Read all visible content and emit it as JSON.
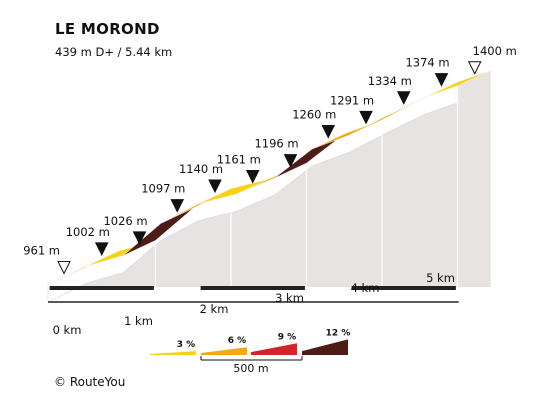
{
  "title": "LE MOROND",
  "subtitle": "439 m D+ / 5.44 km",
  "copyright": "© RouteYou",
  "colors": {
    "grade_3": "#f9d218",
    "grade_6": "#f2a912",
    "grade_9": "#d4242a",
    "grade_12": "#4e1b16",
    "wall": "#e7e3e3",
    "segment_front": "#ffffff"
  },
  "chart_data": {
    "type": "area",
    "distance_unit": "km",
    "elevation_unit": "m",
    "start": {
      "distance_km": 0,
      "elevation_m": 961,
      "label": "961 m"
    },
    "end": {
      "distance_km": 5.44,
      "elevation_m": 1400,
      "label": "1400 m"
    },
    "points": [
      {
        "distance_km": 0,
        "elevation_m": 961,
        "label": "961 m"
      },
      {
        "distance_km": 0.5,
        "elevation_m": 1002,
        "label": "1002 m"
      },
      {
        "distance_km": 1.0,
        "elevation_m": 1026,
        "label": "1026 m"
      },
      {
        "distance_km": 1.5,
        "elevation_m": 1097,
        "label": "1097 m"
      },
      {
        "distance_km": 2.0,
        "elevation_m": 1140,
        "label": "1140 m"
      },
      {
        "distance_km": 2.5,
        "elevation_m": 1161,
        "label": "1161 m"
      },
      {
        "distance_km": 3.0,
        "elevation_m": 1196,
        "label": "1196 m"
      },
      {
        "distance_km": 3.5,
        "elevation_m": 1260,
        "label": "1260 m"
      },
      {
        "distance_km": 4.0,
        "elevation_m": 1291,
        "label": "1291 m"
      },
      {
        "distance_km": 4.5,
        "elevation_m": 1334,
        "label": "1334 m"
      },
      {
        "distance_km": 5.0,
        "elevation_m": 1374,
        "label": "1374 m"
      },
      {
        "distance_km": 5.44,
        "elevation_m": 1400,
        "label": "1400 m"
      }
    ],
    "segment_colors": [
      "grade_6",
      "grade_3",
      "grade_12",
      "grade_6",
      "grade_3",
      "grade_6",
      "grade_12",
      "grade_6",
      "grade_6",
      "grade_6",
      "grade_3"
    ],
    "x_ticks": [
      {
        "km": 0,
        "label": "0 km"
      },
      {
        "km": 1,
        "label": "1 km"
      },
      {
        "km": 2,
        "label": "2 km"
      },
      {
        "km": 3,
        "label": "3 km"
      },
      {
        "km": 4,
        "label": "4 km"
      },
      {
        "km": 5,
        "label": "5 km"
      }
    ],
    "legend": {
      "items": [
        {
          "label": "3 %",
          "color": "grade_3"
        },
        {
          "label": "6 %",
          "color": "grade_6"
        },
        {
          "label": "9 %",
          "color": "grade_9"
        },
        {
          "label": "12 %",
          "color": "grade_12"
        }
      ],
      "scale_label": "500 m"
    }
  }
}
